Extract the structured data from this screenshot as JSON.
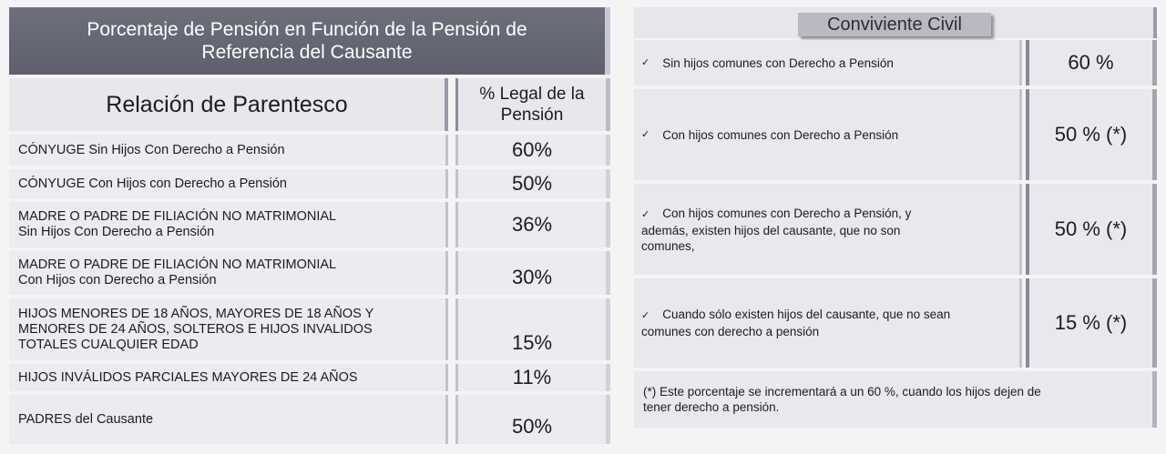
{
  "left_table": {
    "title_line1": "Porcentaje de Pensión en Función de la Pensión de",
    "title_line2": "Referencia del Causante",
    "header_relacion": "Relación de Parentesco",
    "header_pct_line1": "% Legal de la",
    "header_pct_line2": "Pensión",
    "rows": [
      {
        "lines": [
          "CÓNYUGE Sin Hijos Con Derecho a Pensión"
        ],
        "pct": "60%"
      },
      {
        "lines": [
          "CÓNYUGE Con Hijos con Derecho a Pensión"
        ],
        "pct": "50%"
      },
      {
        "lines": [
          "MADRE O PADRE DE FILIACIÓN NO MATRIMONIAL",
          "Sin Hijos Con Derecho a Pensión"
        ],
        "pct": "36%"
      },
      {
        "lines": [
          "MADRE O PADRE DE FILIACIÓN NO MATRIMONIAL",
          "Con Hijos con Derecho a Pensión"
        ],
        "pct": "30%"
      },
      {
        "lines": [
          "HIJOS MENORES DE 18 AÑOS, MAYORES DE 18 AÑOS Y",
          "MENORES DE 24 AÑOS, SOLTEROS E HIJOS INVALIDOS",
          "TOTALES CUALQUIER EDAD"
        ],
        "pct": "15%"
      },
      {
        "lines": [
          "HIJOS INVÁLIDOS PARCIALES MAYORES DE 24 AÑOS"
        ],
        "pct": "11%"
      },
      {
        "lines": [
          "PADRES del Causante"
        ],
        "pct": "50%"
      }
    ]
  },
  "right_table": {
    "title": "Conviviente Civil",
    "check_mark": "✓",
    "rows": [
      {
        "lines": [
          "Sin hijos comunes con Derecho a Pensión"
        ],
        "pct": "60 %"
      },
      {
        "lines": [
          "Con hijos comunes con Derecho a Pensión"
        ],
        "pct": "50 % (*)"
      },
      {
        "lines": [
          "Con hijos comunes con Derecho a Pensión, y",
          "además, existen hijos del causante, que no son",
          "comunes,"
        ],
        "pct": "50 % (*)"
      },
      {
        "lines": [
          "Cuando sólo existen hijos del causante, que no sean",
          "comunes con derecho a pensión"
        ],
        "pct": "15 % (*)"
      }
    ],
    "note_line1": "(*) Este porcentaje se incrementará a un 60 %, cuando los hijos dejen de",
    "note_line2": "tener derecho a pensión."
  }
}
